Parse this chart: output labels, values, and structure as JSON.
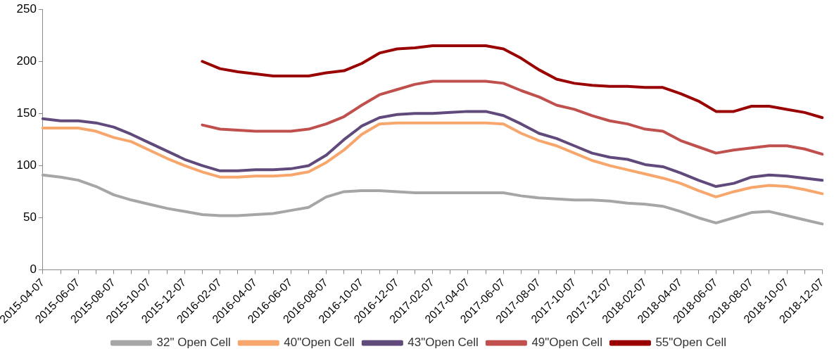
{
  "chart_data": {
    "type": "line",
    "categories": [
      "2015-04-07",
      null,
      "2015-06-07",
      null,
      "2015-08-07",
      null,
      "2015-10-07",
      null,
      "2015-12-07",
      null,
      "2016-02-07",
      null,
      "2016-04-07",
      null,
      "2016-06-07",
      null,
      "2016-08-07",
      null,
      "2016-10-07",
      null,
      "2016-12-07",
      null,
      "2017-02-07",
      null,
      "2017-04-07",
      null,
      "2017-06-07",
      null,
      "2017-08-07",
      null,
      "2017-10-07",
      null,
      "2017-12-07",
      null,
      "2018-02-07",
      null,
      "2018-04-07",
      null,
      "2018-06-07",
      null,
      "2018-08-07",
      null,
      "2018-10-07",
      null,
      "2018-12-07"
    ],
    "ylim": [
      0,
      250
    ],
    "yticks": [
      0,
      50,
      100,
      150,
      200,
      250
    ],
    "legend": "bottom",
    "marker": "none",
    "line_style": "solid",
    "series": [
      {
        "name": "32\" Open Cell",
        "color": "#a6a6a6",
        "values": [
          91,
          89,
          86,
          80,
          72,
          67,
          63,
          59,
          56,
          53,
          52,
          52,
          53,
          54,
          57,
          60,
          70,
          75,
          76,
          76,
          75,
          74,
          74,
          74,
          74,
          74,
          74,
          71,
          69,
          68,
          67,
          67,
          66,
          64,
          63,
          61,
          56,
          50,
          45,
          50,
          55,
          56,
          52,
          48,
          44
        ]
      },
      {
        "name": "40\"Open Cell",
        "color": "#f7a66c",
        "values": [
          136,
          136,
          136,
          133,
          127,
          123,
          115,
          107,
          100,
          94,
          89,
          89,
          90,
          90,
          91,
          94,
          103,
          115,
          130,
          140,
          141,
          141,
          141,
          141,
          141,
          141,
          140,
          131,
          124,
          119,
          112,
          105,
          100,
          96,
          92,
          88,
          83,
          76,
          70,
          75,
          79,
          81,
          80,
          77,
          73
        ]
      },
      {
        "name": "43\"Open Cell",
        "color": "#604a7b",
        "values": [
          145,
          143,
          143,
          141,
          137,
          130,
          122,
          114,
          106,
          100,
          95,
          95,
          96,
          96,
          97,
          100,
          110,
          125,
          138,
          146,
          149,
          150,
          150,
          151,
          152,
          152,
          148,
          140,
          131,
          126,
          119,
          112,
          108,
          106,
          101,
          99,
          93,
          86,
          80,
          83,
          89,
          91,
          90,
          88,
          86
        ]
      },
      {
        "name": "49\"Open Cell",
        "color": "#c0504d",
        "values": [
          null,
          null,
          null,
          null,
          null,
          null,
          null,
          null,
          null,
          139,
          135,
          134,
          133,
          133,
          133,
          135,
          140,
          147,
          158,
          168,
          173,
          178,
          181,
          181,
          181,
          181,
          179,
          172,
          166,
          158,
          154,
          148,
          143,
          140,
          135,
          133,
          124,
          118,
          112,
          115,
          117,
          119,
          119,
          116,
          111
        ]
      },
      {
        "name": "55\"Open Cell",
        "color": "#990000",
        "values": [
          null,
          null,
          null,
          null,
          null,
          null,
          null,
          null,
          null,
          200,
          193,
          190,
          188,
          186,
          186,
          186,
          189,
          191,
          198,
          208,
          212,
          213,
          215,
          215,
          215,
          215,
          212,
          203,
          192,
          183,
          179,
          177,
          176,
          176,
          175,
          175,
          169,
          162,
          152,
          152,
          157,
          157,
          154,
          151,
          146
        ]
      }
    ]
  }
}
